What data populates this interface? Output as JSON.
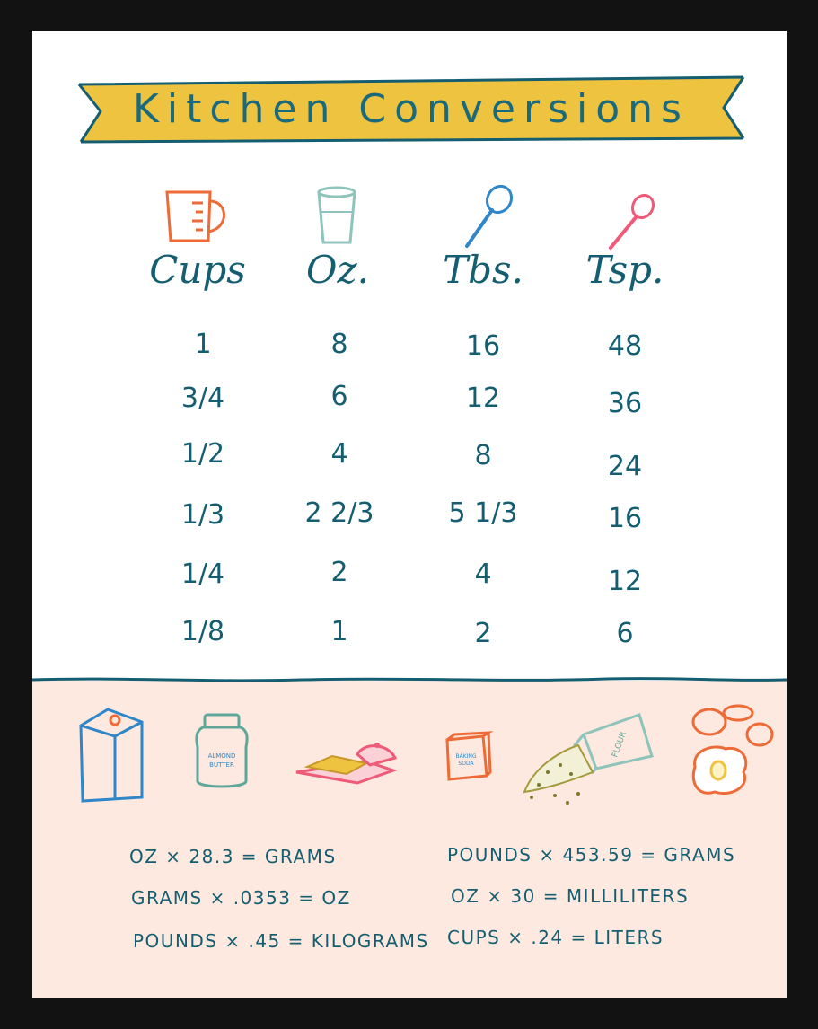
{
  "title": "Kitchen Conversions",
  "columns": [
    {
      "header": "Cups",
      "icon": "measuring-cup-icon",
      "color": "#ee6a36"
    },
    {
      "header": "Oz.",
      "icon": "glass-icon",
      "color": "#8ec4bb"
    },
    {
      "header": "Tbs.",
      "icon": "tablespoon-icon",
      "color": "#2f86c8"
    },
    {
      "header": "Tsp.",
      "icon": "teaspoon-icon",
      "color": "#ee5a78"
    }
  ],
  "rows": [
    [
      "1",
      "8",
      "16",
      "48"
    ],
    [
      "3/4",
      "6",
      "12",
      "36"
    ],
    [
      "1/2",
      "4",
      "8",
      "24"
    ],
    [
      "1/3",
      "2 2/3",
      "5 1/3",
      "16"
    ],
    [
      "1/4",
      "2",
      "4",
      "12"
    ],
    [
      "1/8",
      "1",
      "2",
      "6"
    ]
  ],
  "illustrations": {
    "milk_carton": "milk-carton-icon",
    "jar": {
      "icon": "almond-butter-jar-icon",
      "label": "ALMOND BUTTER"
    },
    "butter": "butter-dish-icon",
    "baking_soda": {
      "icon": "baking-soda-box-icon",
      "label": "BAKING SODA"
    },
    "flour": {
      "icon": "flour-bag-icon",
      "label": "FLOUR"
    },
    "eggs": "eggs-icon"
  },
  "formulas": {
    "left": [
      "OZ × 28.3 = GRAMS",
      "GRAMS × .0353 = OZ",
      "POUNDS × .45 = KILOGRAMS"
    ],
    "right": [
      "POUNDS × 453.59 = GRAMS",
      "OZ × 30 = MILLILITERS",
      "CUPS × .24 = LITERS"
    ]
  },
  "colors": {
    "teal_text": "#155e71",
    "banner_yellow": "#eec340",
    "bottom_bg": "#fde9df",
    "frame": "#121212"
  }
}
